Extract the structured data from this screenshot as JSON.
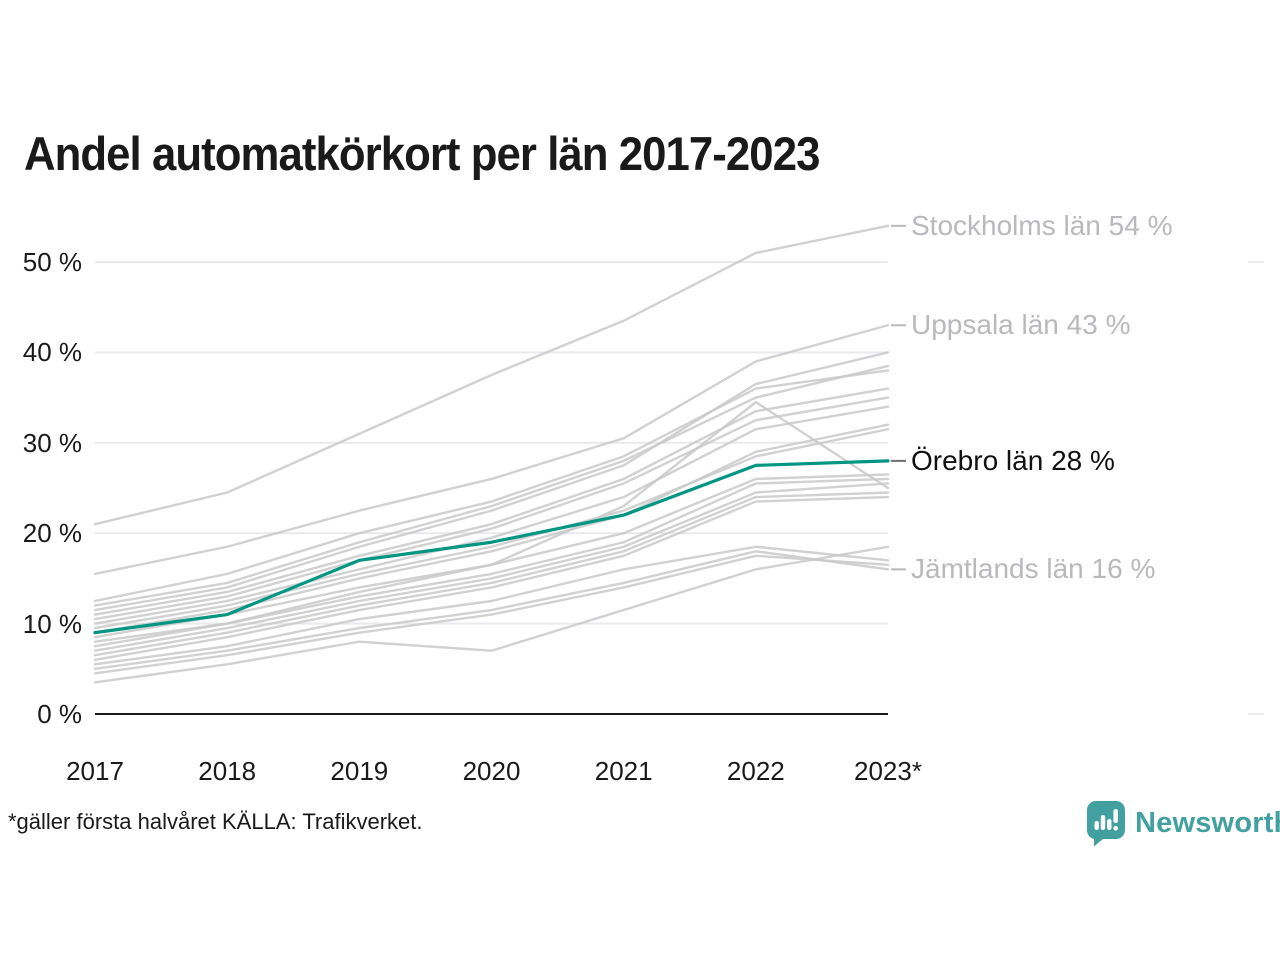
{
  "colors": {
    "highlight": "#009682",
    "line_gray": "#c9c9c9",
    "grid": "#e9e9ee",
    "axis": "#1a1a1a",
    "label_gray": "#b9b9bd",
    "label_dark": "#111111",
    "brand_teal": "#43a0a0"
  },
  "footer": {
    "note": "*gäller första halvåret KÄLLA: Trafikverket."
  },
  "branding": {
    "name": "Newsworthy"
  },
  "chart_data": {
    "type": "line",
    "title": "Andel automatkörkort per län 2017-2023",
    "x": [
      2017,
      2018,
      2019,
      2020,
      2021,
      2022,
      2023
    ],
    "x_tick_labels": [
      "2017",
      "2018",
      "2019",
      "2020",
      "2021",
      "2022",
      "2023*"
    ],
    "y_ticks": [
      "0 %",
      "10 %",
      "20 %",
      "30 %",
      "40 %",
      "50 %"
    ],
    "ylim": [
      0,
      50
    ],
    "grid": true,
    "legend_position": "end-labels-right",
    "series": [
      {
        "name": "Stockholms län",
        "values": [
          21,
          24.5,
          31,
          37.5,
          43.5,
          51,
          54
        ]
      },
      {
        "name": "Uppsala län",
        "values": [
          15.5,
          18.5,
          22.5,
          26,
          30.5,
          39,
          43
        ]
      },
      {
        "name": "county-03",
        "values": [
          11.5,
          14,
          18.5,
          22.5,
          27.5,
          36.5,
          40
        ]
      },
      {
        "name": "county-04",
        "values": [
          12,
          14.5,
          19,
          23,
          28,
          35,
          38.5
        ]
      },
      {
        "name": "county-05",
        "values": [
          12.5,
          15.5,
          20,
          23.5,
          28.5,
          36,
          38
        ]
      },
      {
        "name": "county-06",
        "values": [
          11,
          13.5,
          17.5,
          21,
          26,
          33.5,
          36
        ]
      },
      {
        "name": "county-07",
        "values": [
          10.5,
          13,
          17,
          20.5,
          25.5,
          32.5,
          35
        ]
      },
      {
        "name": "county-08",
        "values": [
          10,
          12.5,
          16,
          19.5,
          24,
          31.5,
          34
        ]
      },
      {
        "name": "county-09",
        "values": [
          9.5,
          12,
          15.5,
          18.5,
          22.5,
          28.5,
          31.5
        ]
      },
      {
        "name": "county-10",
        "values": [
          9,
          11.5,
          15,
          18,
          22,
          29,
          32
        ]
      },
      {
        "name": "county-11",
        "values": [
          8,
          10,
          13.5,
          16.5,
          23,
          34.5,
          25
        ]
      },
      {
        "name": "Örebro län",
        "values": [
          9,
          11,
          17,
          19,
          22,
          27.5,
          28
        ],
        "highlighted": true
      },
      {
        "name": "county-13",
        "values": [
          8.5,
          11,
          14,
          16.5,
          20,
          26,
          26.5
        ]
      },
      {
        "name": "county-14",
        "values": [
          7.5,
          10,
          13,
          15.5,
          19,
          25.5,
          26
        ]
      },
      {
        "name": "county-15",
        "values": [
          7,
          9.5,
          12.5,
          15,
          18.5,
          24.5,
          25.5
        ]
      },
      {
        "name": "county-16",
        "values": [
          6.5,
          9,
          12,
          14.5,
          18,
          24,
          24.5
        ]
      },
      {
        "name": "county-17",
        "values": [
          6,
          8.5,
          11.5,
          14,
          17.5,
          23.5,
          24
        ]
      },
      {
        "name": "county-18",
        "values": [
          5.5,
          7.5,
          10.5,
          12.5,
          16,
          18.5,
          17
        ]
      },
      {
        "name": "Jämtlands län",
        "values": [
          5,
          7,
          9.5,
          11.5,
          14.5,
          18,
          16
        ]
      },
      {
        "name": "county-20",
        "values": [
          4.5,
          6.5,
          9,
          11,
          14,
          17.5,
          16.5
        ]
      },
      {
        "name": "county-21",
        "values": [
          3.5,
          5.5,
          8,
          7,
          11.5,
          16,
          18.5
        ]
      }
    ],
    "annotations": [
      {
        "label": "Stockholms län 54 %",
        "value": 54,
        "emphasis": false
      },
      {
        "label": "Uppsala län 43 %",
        "value": 43,
        "emphasis": false
      },
      {
        "label": "Örebro län 28 %",
        "value": 28,
        "emphasis": true
      },
      {
        "label": "Jämtlands län 16 %",
        "value": 16,
        "emphasis": false
      }
    ]
  }
}
